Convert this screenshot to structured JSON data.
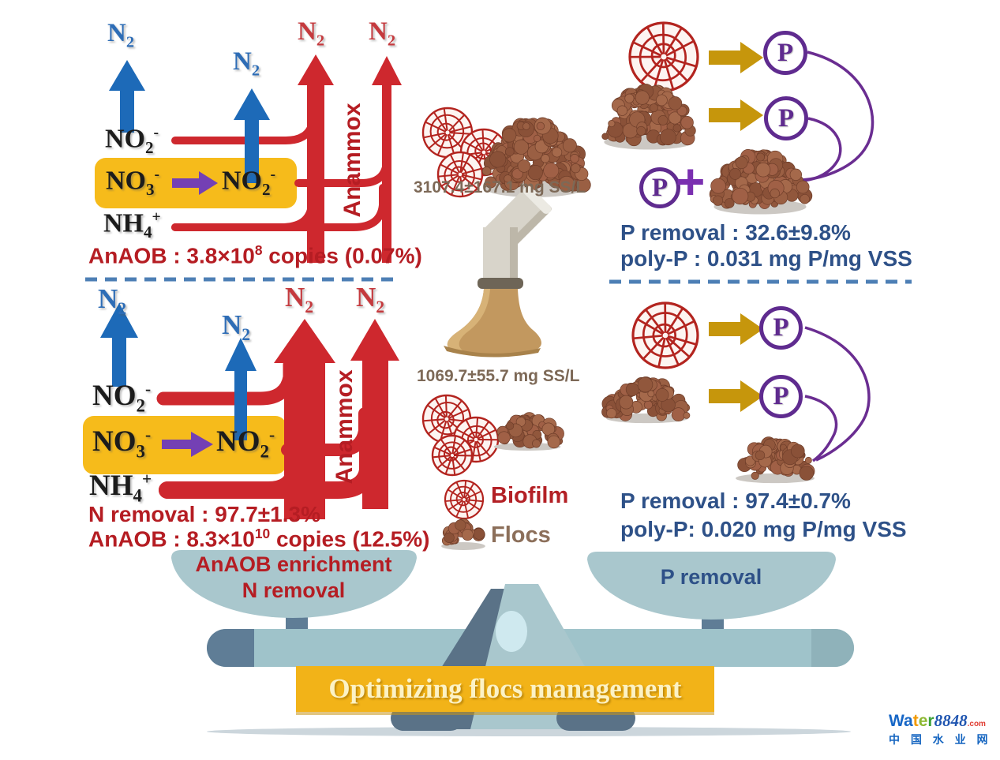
{
  "chem": {
    "n2": {
      "base": "N",
      "sub": "2"
    },
    "no2": {
      "base": "NO",
      "sub": "2",
      "sup": "-"
    },
    "no3": {
      "base": "NO",
      "sub": "3",
      "sup": "-"
    },
    "nh4": {
      "base": "NH",
      "sub": "4",
      "sup": "+"
    }
  },
  "left_top": {
    "anammox": "Anammox",
    "anaob_prefix": "AnAOB : 3.8×10",
    "anaob_exp": "8",
    "anaob_suffix": " copies (0.07%)"
  },
  "left_bottom": {
    "anammox": "Anammox",
    "n_removal": "N removal : 97.7±1.3%",
    "anaob_prefix": "AnAOB : 8.3×10",
    "anaob_exp": "10",
    "anaob_suffix": " copies (12.5%)"
  },
  "middle": {
    "ss_top": "3107.4±167.1 mg SS/L",
    "ss_bottom": "1069.7±55.7 mg SS/L"
  },
  "legend": {
    "biofilm": "Biofilm",
    "flocs": "Flocs"
  },
  "right_top": {
    "p_removal": "P removal : 32.6±9.8%",
    "poly_p": "poly-P : 0.031 mg P/mg VSS",
    "plus": "+"
  },
  "right_bottom": {
    "p_removal": "P removal : 97.4±0.7%",
    "poly_p": "poly-P: 0.020 mg P/mg VSS"
  },
  "p_symbol": "P",
  "balance": {
    "left_pan_line1": "AnAOB enrichment",
    "left_pan_line2": "N removal",
    "right_pan": "P removal",
    "banner": "Optimizing flocs management"
  },
  "watermark": {
    "brand_letters": [
      {
        "ch": "W",
        "color": "#1666c6"
      },
      {
        "ch": "a",
        "color": "#1666c6"
      },
      {
        "ch": "t",
        "color": "#f29a02"
      },
      {
        "ch": "e",
        "color": "#8db832"
      },
      {
        "ch": "r",
        "color": "#3ba139"
      }
    ],
    "brand_number": "8848",
    "brand_tld": ".com",
    "subtitle": "中 国 水 业 网"
  },
  "colors": {
    "red_arrow": "#ce282e",
    "blue_arrow": "#1d6ab8",
    "yellow_box": "#f6bb1b",
    "purple_arrow": "#7440b4",
    "dark_red_text": "#b51d23",
    "blue_text": "#2e5188",
    "brown_text": "#7d6957",
    "gold_arrow": "#c6960c",
    "p_purple": "#5f2b8f",
    "biofilm_red": "#b3241f",
    "flocs_brown": "#9a5f43",
    "banner_bg": "#f2b318",
    "pan_fill": "#a9c7cd",
    "slate": "#5f7d96",
    "dashed_line": "#4d7fb5"
  }
}
